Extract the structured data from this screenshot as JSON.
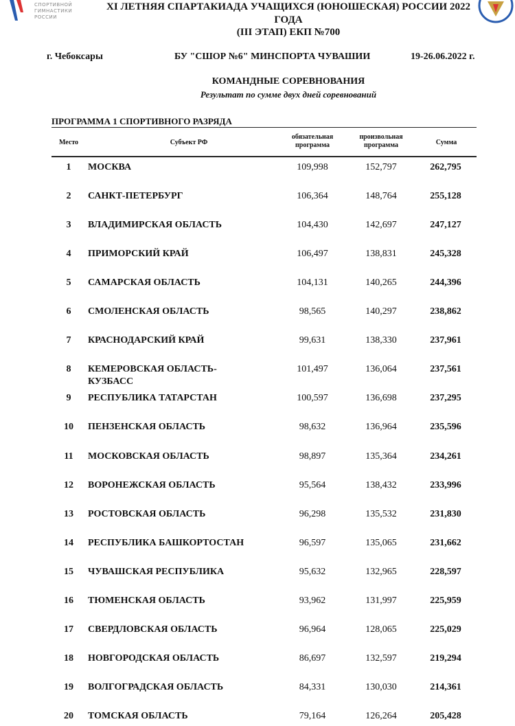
{
  "logo": {
    "lines": [
      "СПОРТИВНОЙ",
      "ГИМНАСТИКИ",
      "РОССИИ"
    ]
  },
  "header": {
    "title_lines": [
      "XI ЛЕТНЯЯ СПАРТАКИАДА УЧАЩИХСЯ (ЮНОШЕСКАЯ) РОССИИ 2022",
      "ГОДА",
      "(III ЭТАП) ЕКП №700"
    ],
    "city": "г. Чебоксары",
    "venue": "БУ \"СШОР №6\" МИНСПОРТА ЧУВАШИИ",
    "dates": "19-26.06.2022 г."
  },
  "section": {
    "title": "КОМАНДНЫЕ СОРЕВНОВАНИЯ",
    "subtitle": "Результат по сумме двух дней соревнований"
  },
  "program": "ПРОГРАММА 1 СПОРТИВНОГО РАЗРЯДА",
  "table": {
    "columns": [
      "Место",
      "Субъект РФ",
      "обязательная программа",
      "произвольная программа",
      "Сумма"
    ],
    "rows": [
      [
        1,
        "МОСКВА",
        "109,998",
        "152,797",
        "262,795"
      ],
      [
        2,
        "САНКТ-ПЕТЕРБУРГ",
        "106,364",
        "148,764",
        "255,128"
      ],
      [
        3,
        "ВЛАДИМИРСКАЯ ОБЛАСТЬ",
        "104,430",
        "142,697",
        "247,127"
      ],
      [
        4,
        "ПРИМОРСКИЙ КРАЙ",
        "106,497",
        "138,831",
        "245,328"
      ],
      [
        5,
        "САМАРСКАЯ ОБЛАСТЬ",
        "104,131",
        "140,265",
        "244,396"
      ],
      [
        6,
        "СМОЛЕНСКАЯ ОБЛАСТЬ",
        "98,565",
        "140,297",
        "238,862"
      ],
      [
        7,
        "КРАСНОДАРСКИЙ КРАЙ",
        "99,631",
        "138,330",
        "237,961"
      ],
      [
        8,
        "КЕМЕРОВСКАЯ ОБЛАСТЬ-КУЗБАСС",
        "101,497",
        "136,064",
        "237,561"
      ],
      [
        9,
        "РЕСПУБЛИКА ТАТАРСТАН",
        "100,597",
        "136,698",
        "237,295"
      ],
      [
        10,
        "ПЕНЗЕНСКАЯ ОБЛАСТЬ",
        "98,632",
        "136,964",
        "235,596"
      ],
      [
        11,
        "МОСКОВСКАЯ ОБЛАСТЬ",
        "98,897",
        "135,364",
        "234,261"
      ],
      [
        12,
        "ВОРОНЕЖСКАЯ ОБЛАСТЬ",
        "95,564",
        "138,432",
        "233,996"
      ],
      [
        13,
        "РОСТОВСКАЯ ОБЛАСТЬ",
        "96,298",
        "135,532",
        "231,830"
      ],
      [
        14,
        "РЕСПУБЛИКА БАШКОРТОСТАН",
        "96,597",
        "135,065",
        "231,662"
      ],
      [
        15,
        "ЧУВАШСКАЯ РЕСПУБЛИКА",
        "95,632",
        "132,965",
        "228,597"
      ],
      [
        16,
        "ТЮМЕНСКАЯ ОБЛАСТЬ",
        "93,962",
        "131,997",
        "225,959"
      ],
      [
        17,
        "СВЕРДЛОВСКАЯ ОБЛАСТЬ",
        "96,964",
        "128,065",
        "225,029"
      ],
      [
        18,
        "НОВГОРОДСКАЯ ОБЛАСТЬ",
        "86,697",
        "132,597",
        "219,294"
      ],
      [
        19,
        "ВОЛГОГРАДСКАЯ ОБЛАСТЬ",
        "84,331",
        "130,030",
        "214,361"
      ],
      [
        20,
        "ТОМСКАЯ ОБЛАСТЬ",
        "79,164",
        "126,264",
        "205,428"
      ]
    ]
  }
}
